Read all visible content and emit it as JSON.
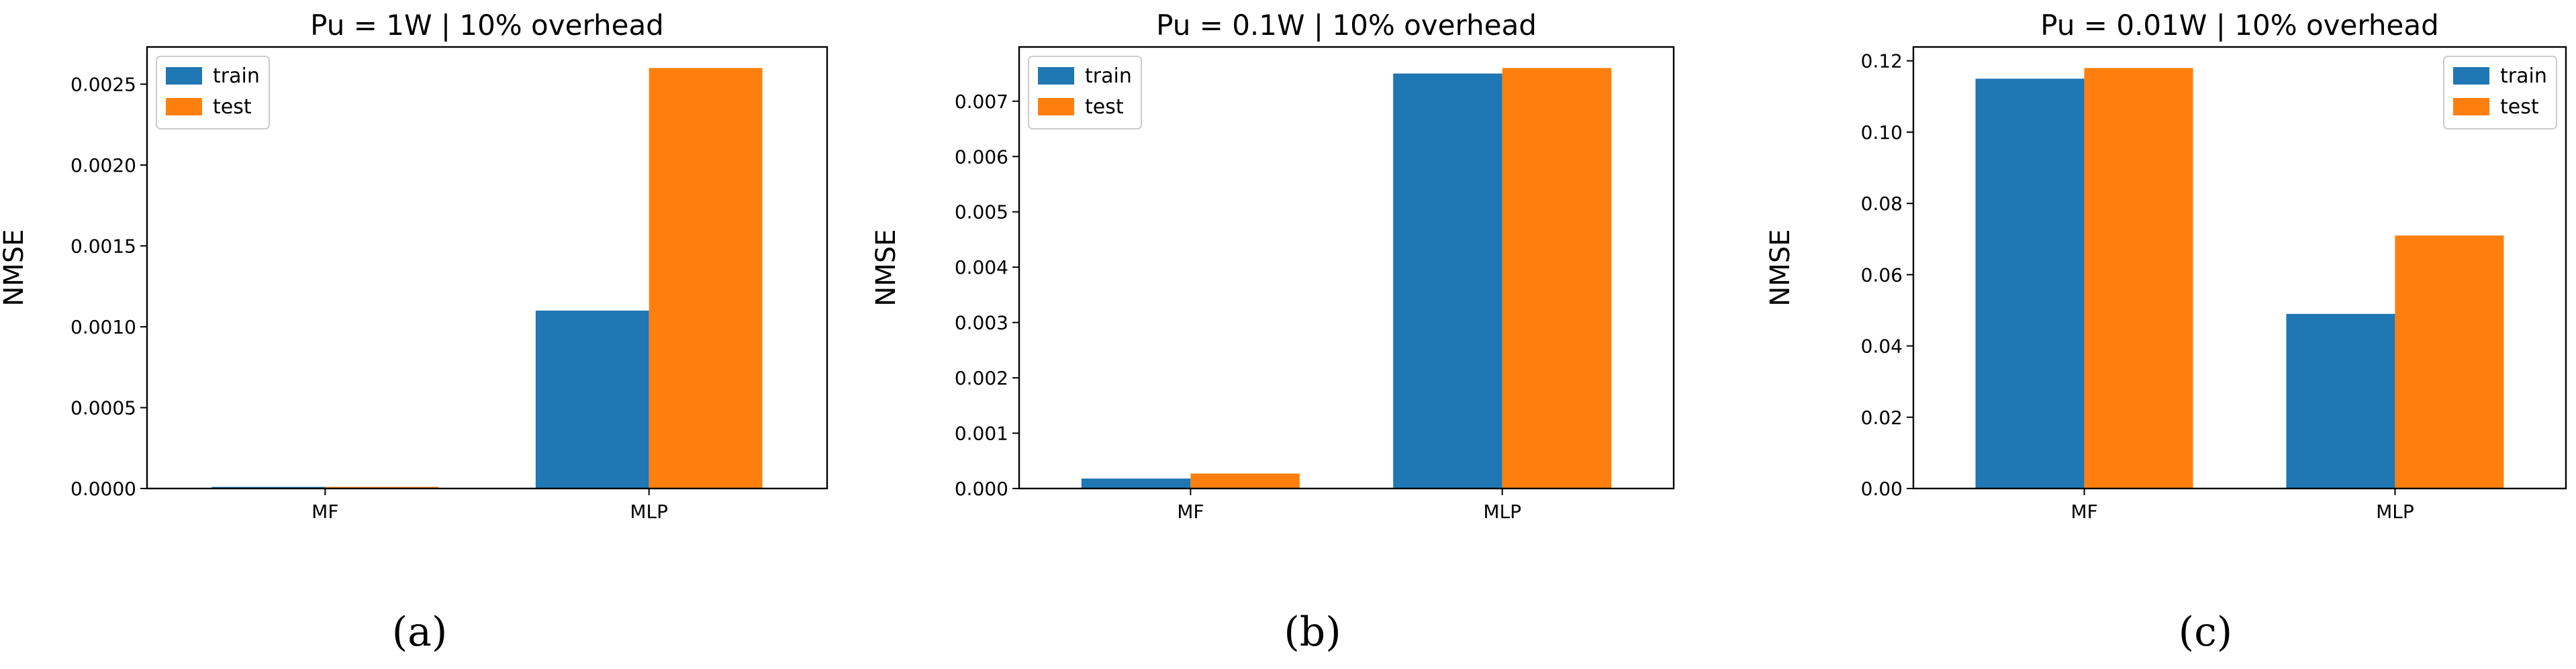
{
  "chart_data": [
    {
      "type": "bar",
      "title": "Pu = 1W | 10% overhead",
      "xlabel": "",
      "ylabel": "NMSE",
      "categories": [
        "MF",
        "MLP"
      ],
      "series": [
        {
          "name": "train",
          "values": [
            1e-05,
            0.0011
          ],
          "color": "#1f77b4"
        },
        {
          "name": "test",
          "values": [
            1e-05,
            0.0026
          ],
          "color": "#ff7f0e"
        }
      ],
      "ylim": [
        0,
        0.00273
      ],
      "yticks": [
        0,
        0.0005,
        0.001,
        0.0015,
        0.002,
        0.0025
      ],
      "ytick_labels": [
        "0.0000",
        "0.0005",
        "0.0010",
        "0.0015",
        "0.0020",
        "0.0025"
      ],
      "legend_position": "top-left",
      "caption": "(a)"
    },
    {
      "type": "bar",
      "title": "Pu = 0.1W | 10% overhead",
      "xlabel": "",
      "ylabel": "NMSE",
      "categories": [
        "MF",
        "MLP"
      ],
      "series": [
        {
          "name": "train",
          "values": [
            0.00018,
            0.0075
          ],
          "color": "#1f77b4"
        },
        {
          "name": "test",
          "values": [
            0.00027,
            0.0076
          ],
          "color": "#ff7f0e"
        }
      ],
      "ylim": [
        0,
        0.00798
      ],
      "yticks": [
        0,
        0.001,
        0.002,
        0.003,
        0.004,
        0.005,
        0.006,
        0.007
      ],
      "ytick_labels": [
        "0.000",
        "0.001",
        "0.002",
        "0.003",
        "0.004",
        "0.005",
        "0.006",
        "0.007"
      ],
      "legend_position": "top-left",
      "caption": "(b)"
    },
    {
      "type": "bar",
      "title": "Pu = 0.01W | 10% overhead",
      "xlabel": "",
      "ylabel": "NMSE",
      "categories": [
        "MF",
        "MLP"
      ],
      "series": [
        {
          "name": "train",
          "values": [
            0.115,
            0.049
          ],
          "color": "#1f77b4"
        },
        {
          "name": "test",
          "values": [
            0.118,
            0.071
          ],
          "color": "#ff7f0e"
        }
      ],
      "ylim": [
        0,
        0.1239
      ],
      "yticks": [
        0,
        0.02,
        0.04,
        0.06,
        0.08,
        0.1,
        0.12
      ],
      "ytick_labels": [
        "0.00",
        "0.02",
        "0.04",
        "0.06",
        "0.08",
        "0.10",
        "0.12"
      ],
      "legend_position": "top-right",
      "caption": "(c)"
    }
  ]
}
